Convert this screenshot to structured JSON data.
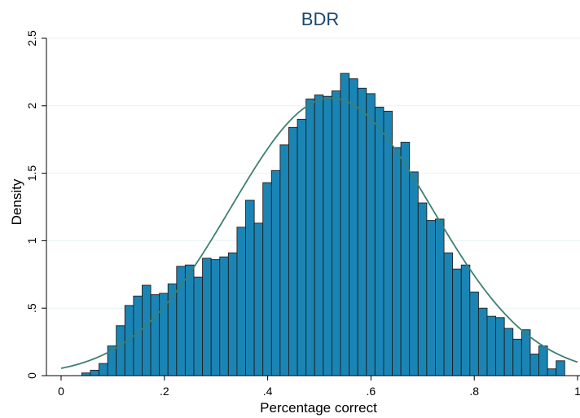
{
  "chart_data": {
    "type": "bar",
    "title": "BDR",
    "xlabel": "Percentage correct",
    "ylabel": "Density",
    "xlim": [
      0,
      1
    ],
    "ylim": [
      0,
      2.5
    ],
    "xticks": [
      {
        "value": 0,
        "label": "0"
      },
      {
        "value": 0.2,
        "label": ".2"
      },
      {
        "value": 0.4,
        "label": ".4"
      },
      {
        "value": 0.6,
        "label": ".6"
      },
      {
        "value": 0.8,
        "label": ".8"
      },
      {
        "value": 1,
        "label": "1"
      }
    ],
    "yticks": [
      {
        "value": 0,
        "label": "0"
      },
      {
        "value": 0.5,
        "label": ".5"
      },
      {
        "value": 1,
        "label": "1"
      },
      {
        "value": 1.5,
        "label": "1.5"
      },
      {
        "value": 2,
        "label": "2"
      },
      {
        "value": 2.5,
        "label": "2.5"
      }
    ],
    "grid": true,
    "histogram": {
      "bin_start": 0.04,
      "bin_width": 0.0167,
      "density": [
        0.02,
        0.04,
        0.09,
        0.22,
        0.37,
        0.52,
        0.59,
        0.67,
        0.6,
        0.61,
        0.68,
        0.81,
        0.82,
        0.73,
        0.87,
        0.86,
        0.88,
        0.91,
        1.1,
        1.3,
        1.13,
        1.43,
        1.52,
        1.71,
        1.84,
        1.9,
        2.05,
        2.08,
        2.07,
        2.11,
        2.24,
        2.2,
        2.13,
        2.09,
        1.99,
        1.96,
        1.69,
        1.73,
        1.51,
        1.28,
        1.15,
        1.16,
        0.91,
        0.79,
        0.82,
        0.62,
        0.5,
        0.44,
        0.43,
        0.35,
        0.27,
        0.34,
        0.16,
        0.22,
        0.05,
        0.11
      ]
    },
    "normal_curve": {
      "mean": 0.523,
      "sd": 0.194
    },
    "colors": {
      "bar_fill": "#1a85b5",
      "bar_edge": "#1f1f1f",
      "curve": "#3d7f73",
      "grid": "#eaf2f3",
      "title": "#1a476f"
    }
  }
}
